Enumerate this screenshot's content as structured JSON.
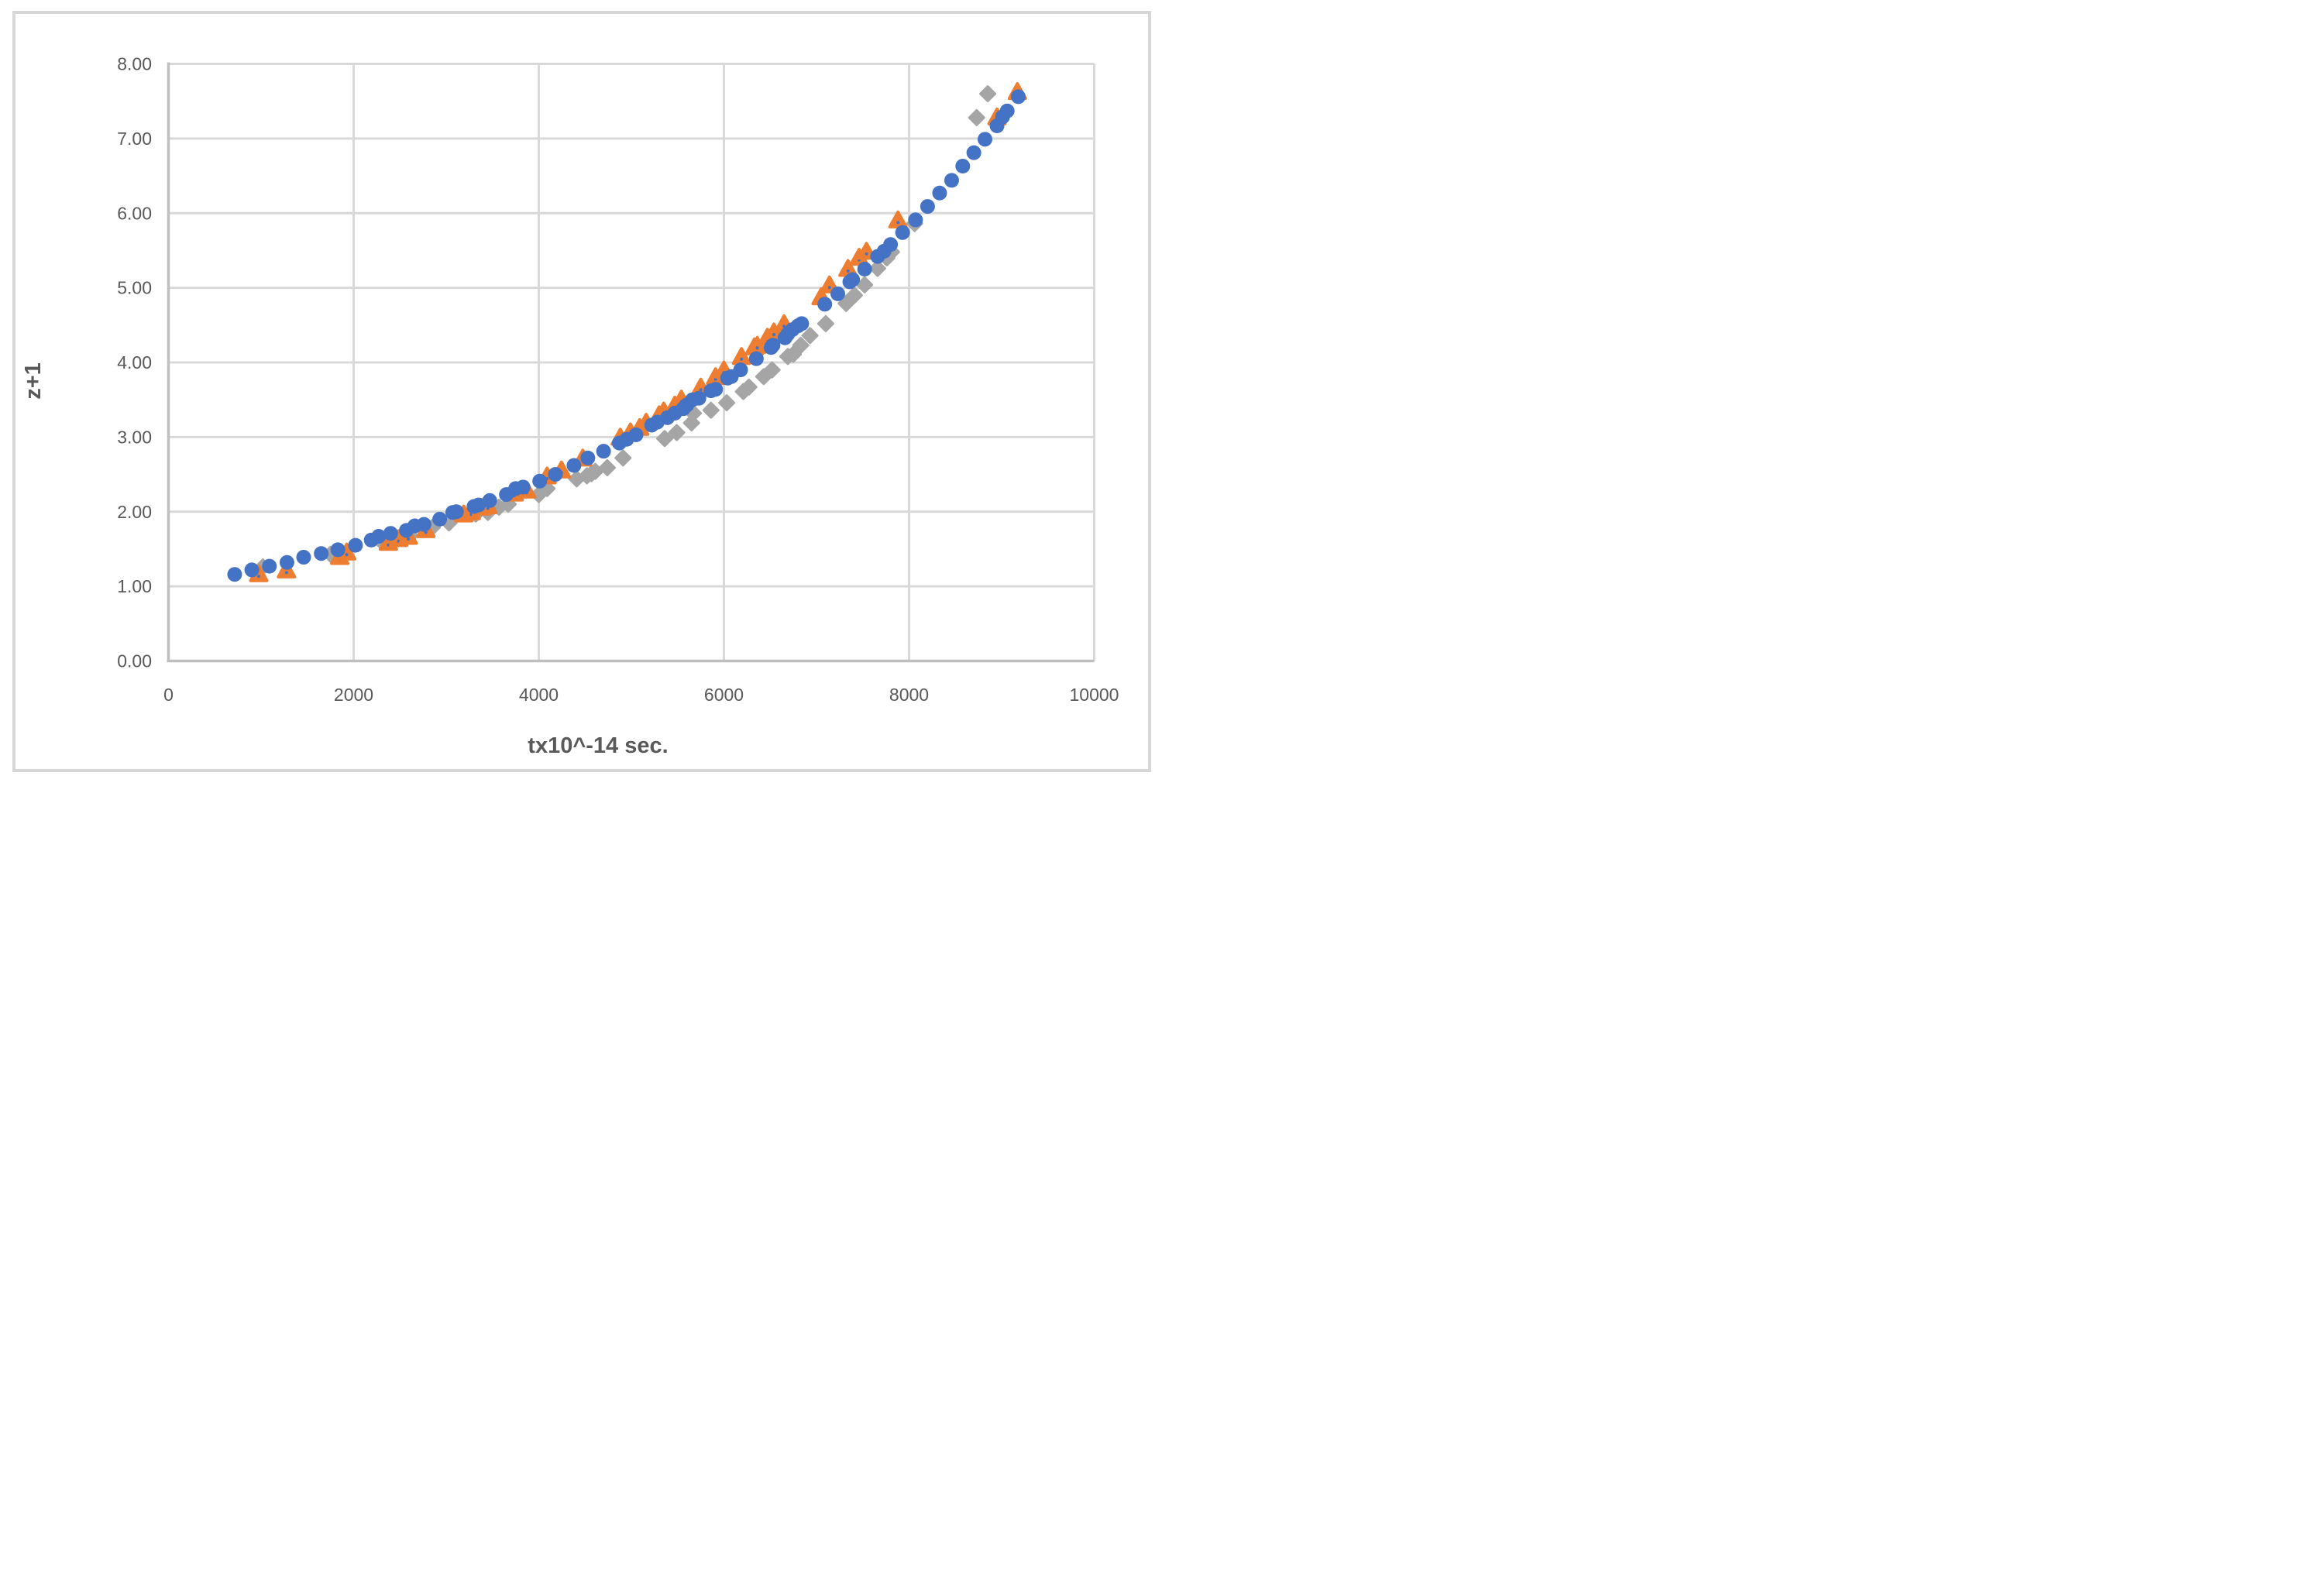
{
  "chart_data": {
    "type": "scatter",
    "title": "",
    "xlabel": "tx10^-14 sec.",
    "ylabel": "z+1",
    "xlim": [
      0,
      10000
    ],
    "ylim": [
      0,
      8
    ],
    "x_tick_values": [
      0,
      2000,
      4000,
      6000,
      8000,
      10000
    ],
    "x_tick_labels": [
      "0",
      "2000",
      "4000",
      "6000",
      "8000",
      "10000"
    ],
    "y_tick_values": [
      0,
      1,
      2,
      3,
      4,
      5,
      6,
      7,
      8
    ],
    "y_tick_labels": [
      "0.00",
      "1.00",
      "2.00",
      "3.00",
      "4.00",
      "5.00",
      "6.00",
      "7.00",
      "8.00"
    ],
    "grid": true,
    "legend": "none",
    "colors": {
      "grid": "#d9d9d9",
      "axis_line": "#bfbfbf",
      "tick_label": "#595959",
      "axis_title": "#595959",
      "frame_border": "#d7d7d7",
      "background": "#ffffff"
    },
    "series": [
      {
        "id": "blue-circles",
        "marker": "circle",
        "color": "#4472c4",
        "points": [
          [
            715,
            1.16
          ],
          [
            900,
            1.22
          ],
          [
            1090,
            1.27
          ],
          [
            1280,
            1.32
          ],
          [
            1460,
            1.39
          ],
          [
            1650,
            1.44
          ],
          [
            1830,
            1.49
          ],
          [
            2020,
            1.55
          ],
          [
            2190,
            1.62
          ],
          [
            2270,
            1.67
          ],
          [
            2400,
            1.71
          ],
          [
            2570,
            1.75
          ],
          [
            2660,
            1.81
          ],
          [
            2760,
            1.83
          ],
          [
            2930,
            1.9
          ],
          [
            3070,
            1.99
          ],
          [
            3110,
            2.0
          ],
          [
            3300,
            2.07
          ],
          [
            3350,
            2.09
          ],
          [
            3470,
            2.15
          ],
          [
            3650,
            2.23
          ],
          [
            3750,
            2.31
          ],
          [
            3830,
            2.33
          ],
          [
            4010,
            2.41
          ],
          [
            4180,
            2.5
          ],
          [
            4380,
            2.62
          ],
          [
            4530,
            2.72
          ],
          [
            4700,
            2.81
          ],
          [
            4870,
            2.92
          ],
          [
            4950,
            2.97
          ],
          [
            5050,
            3.03
          ],
          [
            5220,
            3.16
          ],
          [
            5280,
            3.2
          ],
          [
            5390,
            3.26
          ],
          [
            5470,
            3.32
          ],
          [
            5560,
            3.38
          ],
          [
            5600,
            3.43
          ],
          [
            5660,
            3.5
          ],
          [
            5730,
            3.52
          ],
          [
            5860,
            3.62
          ],
          [
            5910,
            3.64
          ],
          [
            6040,
            3.79
          ],
          [
            6080,
            3.81
          ],
          [
            6180,
            3.9
          ],
          [
            6350,
            4.05
          ],
          [
            6510,
            4.2
          ],
          [
            6530,
            4.23
          ],
          [
            6660,
            4.33
          ],
          [
            6690,
            4.38
          ],
          [
            6740,
            4.44
          ],
          [
            6800,
            4.49
          ],
          [
            6840,
            4.52
          ],
          [
            7090,
            4.78
          ],
          [
            7230,
            4.92
          ],
          [
            7360,
            5.08
          ],
          [
            7390,
            5.11
          ],
          [
            7520,
            5.25
          ],
          [
            7660,
            5.42
          ],
          [
            7730,
            5.49
          ],
          [
            7800,
            5.58
          ],
          [
            7930,
            5.74
          ],
          [
            8070,
            5.91
          ],
          [
            8200,
            6.09
          ],
          [
            8330,
            6.27
          ],
          [
            8460,
            6.44
          ],
          [
            8580,
            6.63
          ],
          [
            8700,
            6.81
          ],
          [
            8820,
            6.99
          ],
          [
            8950,
            7.17
          ],
          [
            9010,
            7.29
          ],
          [
            9060,
            7.37
          ],
          [
            9180,
            7.56
          ]
        ]
      },
      {
        "id": "orange-triangles",
        "marker": "triangle",
        "color": "#ed7d31",
        "inner_dot_color": "#4472c4",
        "points": [
          [
            975,
            1.16
          ],
          [
            1275,
            1.21
          ],
          [
            1850,
            1.39
          ],
          [
            1925,
            1.45
          ],
          [
            2375,
            1.58
          ],
          [
            2485,
            1.63
          ],
          [
            2590,
            1.66
          ],
          [
            2780,
            1.75
          ],
          [
            3190,
            1.96
          ],
          [
            3270,
            1.99
          ],
          [
            3380,
            2.05
          ],
          [
            3450,
            2.07
          ],
          [
            3735,
            2.24
          ],
          [
            3870,
            2.28
          ],
          [
            4090,
            2.47
          ],
          [
            4245,
            2.55
          ],
          [
            4475,
            2.71
          ],
          [
            4880,
            2.99
          ],
          [
            4990,
            3.06
          ],
          [
            5090,
            3.12
          ],
          [
            5160,
            3.19
          ],
          [
            5300,
            3.29
          ],
          [
            5350,
            3.34
          ],
          [
            5470,
            3.42
          ],
          [
            5540,
            3.5
          ],
          [
            5750,
            3.66
          ],
          [
            5910,
            3.8
          ],
          [
            6000,
            3.89
          ],
          [
            6190,
            4.07
          ],
          [
            6330,
            4.2
          ],
          [
            6360,
            4.22
          ],
          [
            6470,
            4.33
          ],
          [
            6540,
            4.4
          ],
          [
            6650,
            4.51
          ],
          [
            7050,
            4.87
          ],
          [
            7140,
            5.03
          ],
          [
            7340,
            5.25
          ],
          [
            7460,
            5.4
          ],
          [
            7540,
            5.48
          ],
          [
            7880,
            5.9
          ],
          [
            8950,
            7.28
          ],
          [
            9170,
            7.62
          ]
        ]
      },
      {
        "id": "gray-diamonds",
        "marker": "diamond",
        "color": "#a5a5a5",
        "points": [
          [
            1020,
            1.26
          ],
          [
            1750,
            1.43
          ],
          [
            2310,
            1.59
          ],
          [
            2470,
            1.64
          ],
          [
            2610,
            1.68
          ],
          [
            2850,
            1.79
          ],
          [
            3030,
            1.85
          ],
          [
            3320,
            1.97
          ],
          [
            3450,
            1.99
          ],
          [
            3570,
            2.06
          ],
          [
            3670,
            2.1
          ],
          [
            4000,
            2.23
          ],
          [
            4090,
            2.31
          ],
          [
            4410,
            2.44
          ],
          [
            4520,
            2.48
          ],
          [
            4570,
            2.51
          ],
          [
            4610,
            2.54
          ],
          [
            4740,
            2.59
          ],
          [
            4910,
            2.72
          ],
          [
            5360,
            2.98
          ],
          [
            5490,
            3.06
          ],
          [
            5650,
            3.19
          ],
          [
            5670,
            3.32
          ],
          [
            5860,
            3.36
          ],
          [
            6030,
            3.46
          ],
          [
            6210,
            3.61
          ],
          [
            6270,
            3.67
          ],
          [
            6430,
            3.81
          ],
          [
            6520,
            3.9
          ],
          [
            6690,
            4.08
          ],
          [
            6750,
            4.11
          ],
          [
            6830,
            4.23
          ],
          [
            6930,
            4.36
          ],
          [
            7100,
            4.52
          ],
          [
            7320,
            4.79
          ],
          [
            7410,
            4.9
          ],
          [
            7520,
            5.04
          ],
          [
            7660,
            5.26
          ],
          [
            7760,
            5.4
          ],
          [
            7810,
            5.48
          ],
          [
            8060,
            5.86
          ],
          [
            8730,
            7.28
          ],
          [
            8850,
            7.6
          ]
        ]
      }
    ]
  }
}
